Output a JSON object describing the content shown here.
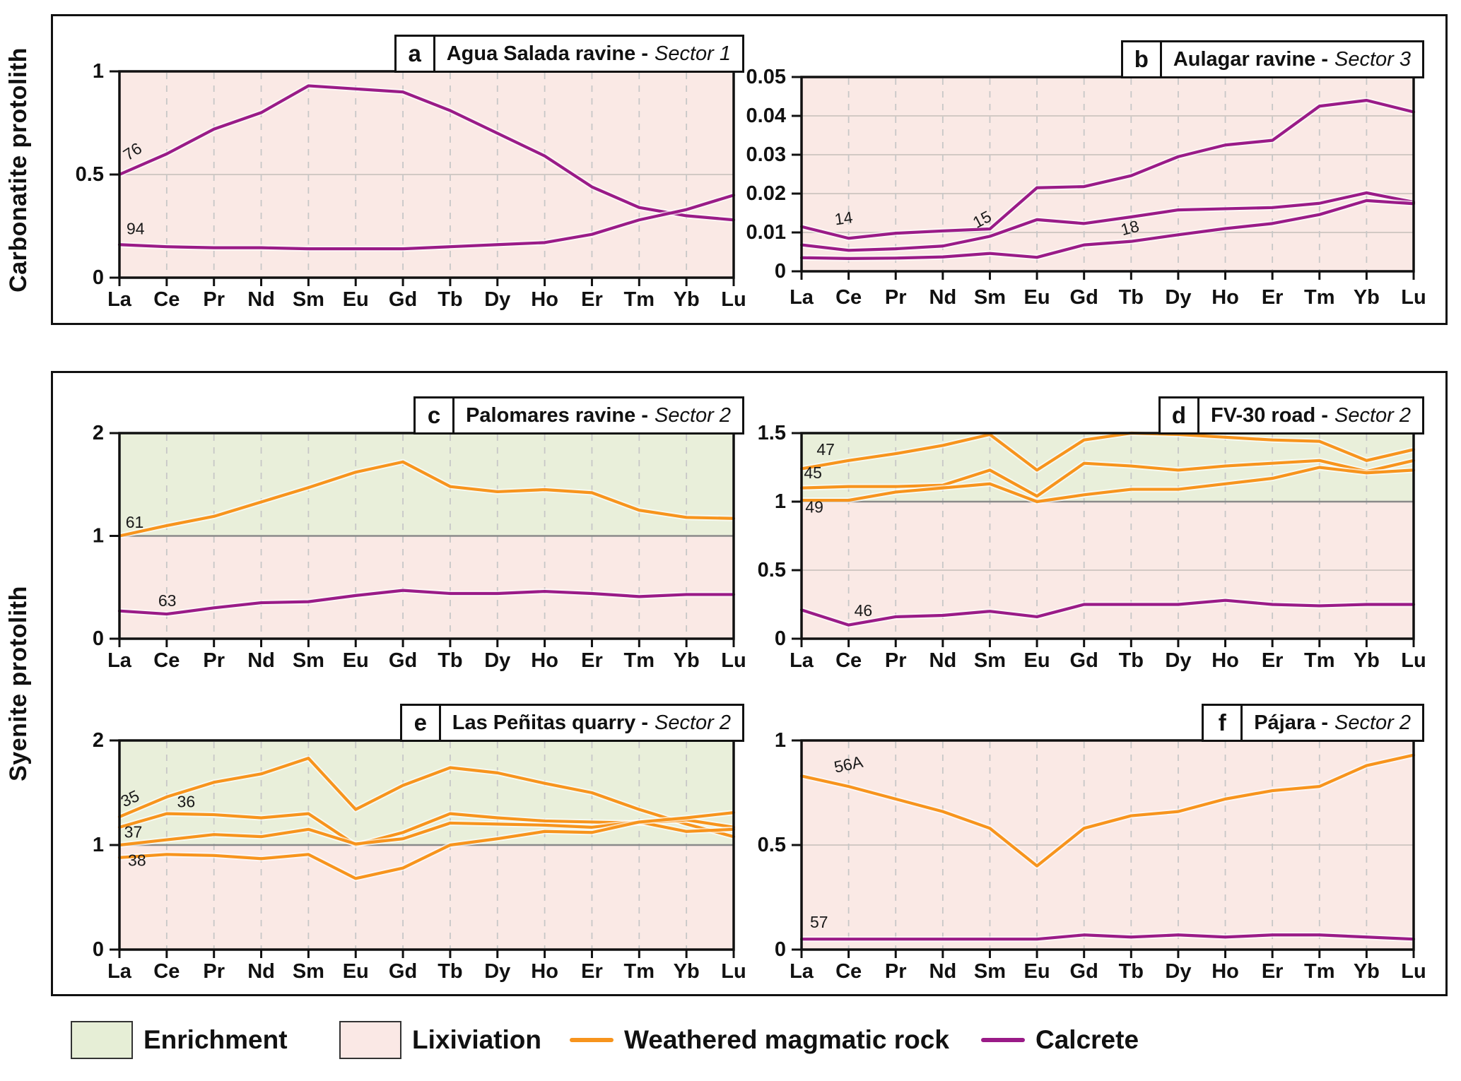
{
  "figure": {
    "groups": [
      {
        "label": "Carbonatite protolith"
      },
      {
        "label": "Syenite protolith"
      }
    ],
    "legend": [
      {
        "kind": "swatch",
        "color": "#E6EED6",
        "label": "Enrichment"
      },
      {
        "kind": "swatch",
        "color": "#FAE8E5",
        "label": "Lixiviation"
      },
      {
        "kind": "line",
        "color": "#F7941D",
        "label": "Weathered magmatic rock"
      },
      {
        "kind": "line",
        "color": "#9A1B87",
        "label": "Calcrete"
      }
    ]
  },
  "colors": {
    "lixiviation_bg": "#FAE9E5",
    "enrichment_bg": "#E9EFDA",
    "calcrete": "#9A1B87",
    "weathered": "#F7941D",
    "axis": "#111111",
    "grid_dashed": "#c7c7c7",
    "grid_solid": "#cdc4bf",
    "split_line": "#8a8a8a"
  },
  "chart_data": [
    {
      "id": "a",
      "letter": "a",
      "title": "Agua Salada ravine -",
      "sector": "Sector 1",
      "type": "line",
      "legend_position": "none",
      "grid": "on",
      "categories": [
        "La",
        "Ce",
        "Pr",
        "Nd",
        "Sm",
        "Eu",
        "Gd",
        "Tb",
        "Dy",
        "Ho",
        "Er",
        "Tm",
        "Yb",
        "Lu"
      ],
      "ylim": [
        0,
        1
      ],
      "yticks": [
        {
          "v": 1,
          "t": "1"
        },
        {
          "v": 0.5,
          "t": "0.5"
        },
        {
          "v": 0,
          "t": "0"
        }
      ],
      "hgrid": [
        0.5
      ],
      "split": null,
      "series": [
        {
          "name": "76",
          "color": "calcrete",
          "values": [
            0.5,
            0.6,
            0.72,
            0.8,
            0.93,
            0.915,
            0.9,
            0.81,
            0.7,
            0.59,
            0.44,
            0.34,
            0.3,
            0.28
          ],
          "label": {
            "x": 0.18,
            "y": 0.565,
            "rot": -33
          }
        },
        {
          "name": "94",
          "color": "calcrete",
          "values": [
            0.16,
            0.15,
            0.145,
            0.145,
            0.14,
            0.14,
            0.14,
            0.15,
            0.16,
            0.17,
            0.21,
            0.28,
            0.33,
            0.4
          ],
          "label": {
            "x": 0.15,
            "y": 0.21,
            "rot": 0
          }
        }
      ]
    },
    {
      "id": "b",
      "letter": "b",
      "title": "Aulagar ravine -",
      "sector": "Sector 3",
      "type": "line",
      "legend_position": "none",
      "grid": "on",
      "categories": [
        "La",
        "Ce",
        "Pr",
        "Nd",
        "Sm",
        "Eu",
        "Gd",
        "Tb",
        "Dy",
        "Ho",
        "Er",
        "Tm",
        "Yb",
        "Lu"
      ],
      "ylim": [
        0,
        0.05
      ],
      "yticks": [
        {
          "v": 0.05,
          "t": "0.05"
        },
        {
          "v": 0.04,
          "t": "0.04"
        },
        {
          "v": 0.03,
          "t": "0.03"
        },
        {
          "v": 0.02,
          "t": "0.02"
        },
        {
          "v": 0.01,
          "t": "0.01"
        },
        {
          "v": 0,
          "t": "0"
        }
      ],
      "hgrid": [
        0.01,
        0.02,
        0.03,
        0.04
      ],
      "split": null,
      "series": [
        {
          "name": "14",
          "color": "calcrete",
          "values": [
            0.0115,
            0.0085,
            0.0098,
            0.0104,
            0.0109,
            0.0215,
            0.0218,
            0.0246,
            0.0295,
            0.0325,
            0.0337,
            0.0425,
            0.044,
            0.041
          ],
          "label": {
            "x": 0.72,
            "y": 0.0119,
            "rot": -8
          }
        },
        {
          "name": "15",
          "color": "calcrete",
          "values": [
            0.0068,
            0.0054,
            0.0058,
            0.0065,
            0.009,
            0.0133,
            0.0123,
            0.014,
            0.0158,
            0.0161,
            0.0164,
            0.0175,
            0.0202,
            0.0178
          ],
          "label": {
            "x": 3.72,
            "y": 0.011,
            "rot": -28
          }
        },
        {
          "name": "18",
          "color": "calcrete",
          "values": [
            0.0035,
            0.0033,
            0.0034,
            0.0037,
            0.0046,
            0.0036,
            0.0068,
            0.0077,
            0.0094,
            0.011,
            0.0123,
            0.0146,
            0.0182,
            0.0174
          ],
          "label": {
            "x": 6.82,
            "y": 0.0092,
            "rot": -15
          }
        }
      ]
    },
    {
      "id": "c",
      "letter": "c",
      "title": "Palomares ravine -",
      "sector": "Sector 2",
      "type": "line",
      "legend_position": "none",
      "grid": "on",
      "categories": [
        "La",
        "Ce",
        "Pr",
        "Nd",
        "Sm",
        "Eu",
        "Gd",
        "Tb",
        "Dy",
        "Ho",
        "Er",
        "Tm",
        "Yb",
        "Lu"
      ],
      "ylim": [
        0,
        2
      ],
      "yticks": [
        {
          "v": 2,
          "t": "2"
        },
        {
          "v": 1,
          "t": "1"
        },
        {
          "v": 0,
          "t": "0"
        }
      ],
      "hgrid": [],
      "split": 1,
      "series": [
        {
          "name": "61",
          "color": "weathered",
          "values": [
            1.0,
            1.1,
            1.19,
            1.33,
            1.47,
            1.62,
            1.72,
            1.48,
            1.43,
            1.45,
            1.42,
            1.25,
            1.18,
            1.17
          ],
          "label": {
            "x": 0.13,
            "y": 1.08,
            "rot": 0
          }
        },
        {
          "name": "63",
          "color": "calcrete",
          "values": [
            0.27,
            0.24,
            0.3,
            0.35,
            0.36,
            0.42,
            0.47,
            0.44,
            0.44,
            0.46,
            0.44,
            0.41,
            0.43,
            0.43
          ],
          "label": {
            "x": 0.82,
            "y": 0.315,
            "rot": 0
          }
        }
      ]
    },
    {
      "id": "d",
      "letter": "d",
      "title": "FV-30 road -",
      "sector": "Sector 2",
      "type": "line",
      "legend_position": "none",
      "grid": "on",
      "categories": [
        "La",
        "Ce",
        "Pr",
        "Nd",
        "Sm",
        "Eu",
        "Gd",
        "Tb",
        "Dy",
        "Ho",
        "Er",
        "Tm",
        "Yb",
        "Lu"
      ],
      "ylim": [
        0,
        1.5
      ],
      "yticks": [
        {
          "v": 1.5,
          "t": "1.5"
        },
        {
          "v": 1,
          "t": "1"
        },
        {
          "v": 0.5,
          "t": "0.5"
        },
        {
          "v": 0,
          "t": "0"
        }
      ],
      "hgrid": [
        0.5
      ],
      "split": 1,
      "series": [
        {
          "name": "47",
          "color": "weathered",
          "values": [
            1.24,
            1.3,
            1.35,
            1.41,
            1.49,
            1.23,
            1.45,
            1.5,
            1.49,
            1.47,
            1.45,
            1.44,
            1.3,
            1.38
          ],
          "label": {
            "x": 0.32,
            "y": 1.34,
            "rot": 0
          }
        },
        {
          "name": "45",
          "color": "weathered",
          "values": [
            1.1,
            1.11,
            1.11,
            1.12,
            1.23,
            1.04,
            1.28,
            1.26,
            1.23,
            1.26,
            1.28,
            1.3,
            1.22,
            1.3
          ],
          "label": {
            "x": 0.05,
            "y": 1.17,
            "rot": 0
          }
        },
        {
          "name": "49",
          "color": "weathered",
          "values": [
            1.01,
            1.01,
            1.07,
            1.1,
            1.13,
            1.0,
            1.05,
            1.09,
            1.09,
            1.13,
            1.17,
            1.25,
            1.21,
            1.23
          ],
          "label": {
            "x": 0.08,
            "y": 0.92,
            "rot": 0
          }
        },
        {
          "name": "46",
          "color": "calcrete",
          "values": [
            0.21,
            0.1,
            0.16,
            0.17,
            0.2,
            0.16,
            0.25,
            0.25,
            0.25,
            0.28,
            0.25,
            0.24,
            0.25,
            0.25
          ],
          "label": {
            "x": 1.12,
            "y": 0.165,
            "rot": 0
          }
        }
      ]
    },
    {
      "id": "e",
      "letter": "e",
      "title": "Las Peñitas quarry -",
      "sector": "Sector 2",
      "type": "line",
      "legend_position": "none",
      "grid": "on",
      "categories": [
        "La",
        "Ce",
        "Pr",
        "Nd",
        "Sm",
        "Eu",
        "Gd",
        "Tb",
        "Dy",
        "Ho",
        "Er",
        "Tm",
        "Yb",
        "Lu"
      ],
      "ylim": [
        0,
        2
      ],
      "yticks": [
        {
          "v": 2,
          "t": "2"
        },
        {
          "v": 1,
          "t": "1"
        },
        {
          "v": 0,
          "t": "0"
        }
      ],
      "hgrid": [],
      "split": 1,
      "series": [
        {
          "name": "35",
          "color": "weathered",
          "values": [
            1.27,
            1.46,
            1.6,
            1.68,
            1.83,
            1.34,
            1.57,
            1.74,
            1.69,
            1.59,
            1.5,
            1.34,
            1.2,
            1.08
          ],
          "label": {
            "x": 0.1,
            "y": 1.36,
            "rot": -25
          }
        },
        {
          "name": "36",
          "color": "weathered",
          "values": [
            1.17,
            1.3,
            1.29,
            1.26,
            1.3,
            1.0,
            1.12,
            1.3,
            1.26,
            1.23,
            1.22,
            1.21,
            1.24,
            1.17
          ],
          "label": {
            "x": 1.22,
            "y": 1.36,
            "rot": 0
          }
        },
        {
          "name": "37",
          "color": "weathered",
          "values": [
            1.0,
            1.05,
            1.1,
            1.08,
            1.15,
            1.01,
            1.06,
            1.21,
            1.2,
            1.19,
            1.17,
            1.22,
            1.13,
            1.15
          ],
          "label": {
            "x": 0.1,
            "y": 1.07,
            "rot": 0
          }
        },
        {
          "name": "38",
          "color": "weathered",
          "values": [
            0.88,
            0.91,
            0.9,
            0.87,
            0.91,
            0.68,
            0.78,
            1.0,
            1.06,
            1.13,
            1.12,
            1.22,
            1.26,
            1.31
          ],
          "label": {
            "x": 0.18,
            "y": 0.8,
            "rot": 0
          }
        }
      ]
    },
    {
      "id": "f",
      "letter": "f",
      "title": "Pájara -",
      "sector": "Sector 2",
      "type": "line",
      "legend_position": "none",
      "grid": "on",
      "categories": [
        "La",
        "Ce",
        "Pr",
        "Nd",
        "Sm",
        "Eu",
        "Gd",
        "Tb",
        "Dy",
        "Ho",
        "Er",
        "Tm",
        "Yb",
        "Lu"
      ],
      "ylim": [
        0,
        1
      ],
      "yticks": [
        {
          "v": 1,
          "t": "1"
        },
        {
          "v": 0.5,
          "t": "0.5"
        },
        {
          "v": 0,
          "t": "0"
        }
      ],
      "hgrid": [
        0.5
      ],
      "split": null,
      "series": [
        {
          "name": "56A",
          "color": "weathered",
          "values": [
            0.83,
            0.78,
            0.72,
            0.66,
            0.58,
            0.4,
            0.58,
            0.64,
            0.66,
            0.72,
            0.76,
            0.78,
            0.88,
            0.93
          ],
          "label": {
            "x": 0.72,
            "y": 0.845,
            "rot": -12
          }
        },
        {
          "name": "57",
          "color": "calcrete",
          "values": [
            0.05,
            0.05,
            0.05,
            0.05,
            0.05,
            0.05,
            0.07,
            0.06,
            0.07,
            0.06,
            0.07,
            0.07,
            0.06,
            0.05
          ],
          "label": {
            "x": 0.18,
            "y": 0.105,
            "rot": 0
          }
        }
      ]
    }
  ]
}
